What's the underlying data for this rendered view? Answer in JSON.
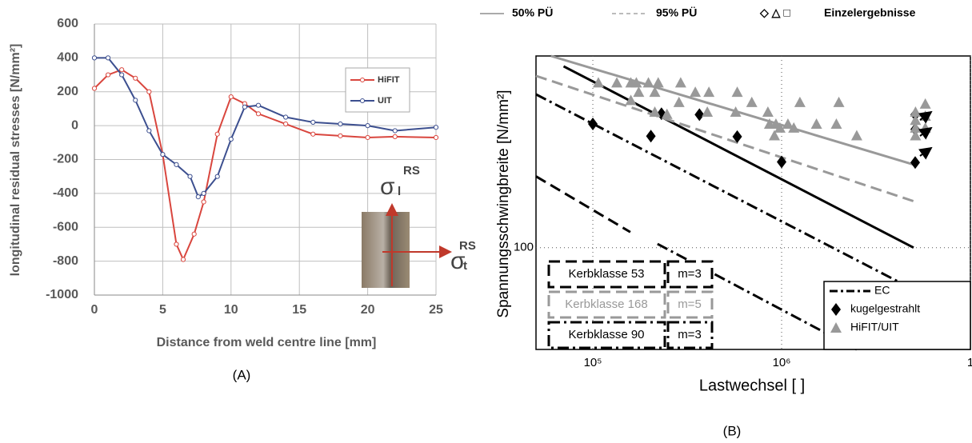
{
  "chart_data": [
    {
      "type": "line",
      "ylabel": "longitudinal residual stresses [N/mm²]",
      "xlabel": "Distance from weld centre line [mm]",
      "caption": "(A)",
      "xlim": [
        0,
        25
      ],
      "xticks": [
        0,
        5,
        10,
        15,
        20,
        25
      ],
      "ylim": [
        -1000,
        600
      ],
      "yticks": [
        -1000,
        -800,
        -600,
        -400,
        -200,
        0,
        200,
        400,
        600
      ],
      "grid": true,
      "series": [
        {
          "name": "HiFIT",
          "color": "#d9463e",
          "x": [
            0,
            1,
            2,
            3,
            4,
            5,
            6,
            6.5,
            7.3,
            8,
            9,
            10,
            11,
            12,
            14,
            16,
            18,
            20,
            22,
            25
          ],
          "values": [
            220,
            300,
            330,
            280,
            200,
            -170,
            -700,
            -790,
            -640,
            -450,
            -50,
            170,
            130,
            70,
            10,
            -50,
            -60,
            -70,
            -65,
            -70
          ]
        },
        {
          "name": "UIT",
          "color": "#3c4f8f",
          "x": [
            0,
            1,
            2,
            3,
            4,
            5,
            6,
            7,
            7.6,
            8,
            9,
            10,
            11,
            12,
            14,
            16,
            18,
            20,
            22,
            25
          ],
          "values": [
            400,
            400,
            300,
            150,
            -30,
            -170,
            -230,
            -300,
            -420,
            -400,
            -300,
            -80,
            110,
            120,
            50,
            20,
            10,
            0,
            -30,
            -10
          ]
        }
      ],
      "annotations": [
        "σ",
        "l",
        "RS",
        "σ",
        "t",
        "RS"
      ]
    },
    {
      "type": "scatter",
      "ylabel": "Spannungsschwingbreite [N/mm²]",
      "xlabel": "Lastwechsel [ ]",
      "caption": "(B)",
      "xscale": "log",
      "yscale": "log",
      "xlim": [
        50000,
        10000000
      ],
      "xticks": [
        {
          "value": 100000,
          "label": "10⁵"
        },
        {
          "value": 1000000,
          "label": "10⁶"
        },
        {
          "value": 10000000,
          "label": "1"
        }
      ],
      "ylim": [
        45,
        450
      ],
      "yticks": [
        100
      ],
      "top_legend": [
        "50% PÜ",
        "95% PÜ",
        "◇ △ □",
        "Einzelergebnisse"
      ],
      "lines": [
        {
          "name": "EC",
          "x": [
            50000,
            5000000
          ],
          "y": [
            333,
            72
          ],
          "color": "#000000",
          "dash": "dashdot"
        },
        {
          "x": [
            220000,
            2500000
          ],
          "y": [
            103,
            45
          ],
          "color": "#000000",
          "dash": "dashdot"
        },
        {
          "x": [
            70000,
            5000000
          ],
          "y": [
            415,
            100
          ],
          "color": "#000000",
          "dash": "solid"
        },
        {
          "x": [
            60000,
            5000000
          ],
          "y": [
            450,
            192
          ],
          "color": "#999999",
          "dash": "solid"
        },
        {
          "x": [
            50000,
            5000000
          ],
          "y": [
            385,
            144
          ],
          "color": "#999999",
          "dash": "dashed"
        },
        {
          "x": [
            50000,
            158000
          ],
          "y": [
            175,
            113
          ],
          "color": "#000000",
          "dash": "dashed"
        }
      ],
      "series": [
        {
          "name": "kugelgestrahlt",
          "color": "#000000",
          "marker": "diamond",
          "x": [
            100000,
            203000,
            231000,
            367000,
            582000,
            1000000,
            5100000,
            5100000,
            5100000
          ],
          "values": [
            264,
            240,
            286,
            284,
            239,
            196,
            195,
            284,
            253
          ]
        },
        {
          "name": "HiFIT/UIT",
          "color": "#999999",
          "marker": "triangle",
          "x": [
            107000,
            134000,
            159000,
            170000,
            197000,
            222000,
            292000,
            175000,
            213000,
            159000,
            213000,
            247000,
            286000,
            349000,
            404000,
            412000,
            582000,
            695000,
            846000,
            863000,
            933000,
            980000,
            1080000,
            1160000,
            1250000,
            1530000,
            1950000,
            2010000,
            2500000,
            5120000,
            5120000,
            5120000,
            5120000,
            5770000,
            5770000,
            5770000,
            571000,
            916000
          ],
          "values": [
            365,
            365,
            365,
            365,
            365,
            365,
            365,
            339,
            339,
            318,
            290,
            285,
            313,
            339,
            290,
            339,
            339,
            313,
            290,
            264,
            264,
            256,
            264,
            256,
            313,
            264,
            264,
            313,
            241,
            290,
            272,
            256,
            241,
            309,
            281,
            256,
            290,
            241
          ]
        }
      ],
      "kerb_table": {
        "rows": [
          [
            "Kerbklasse 53",
            "m=3"
          ],
          [
            "Kerbklasse 168",
            "m=5"
          ],
          [
            "Kerbklasse 90",
            "m=3"
          ]
        ],
        "colors": [
          "#000000",
          "#999999",
          "#000000"
        ],
        "dash": [
          "dashed",
          "dashed",
          "dashdot"
        ]
      }
    }
  ]
}
